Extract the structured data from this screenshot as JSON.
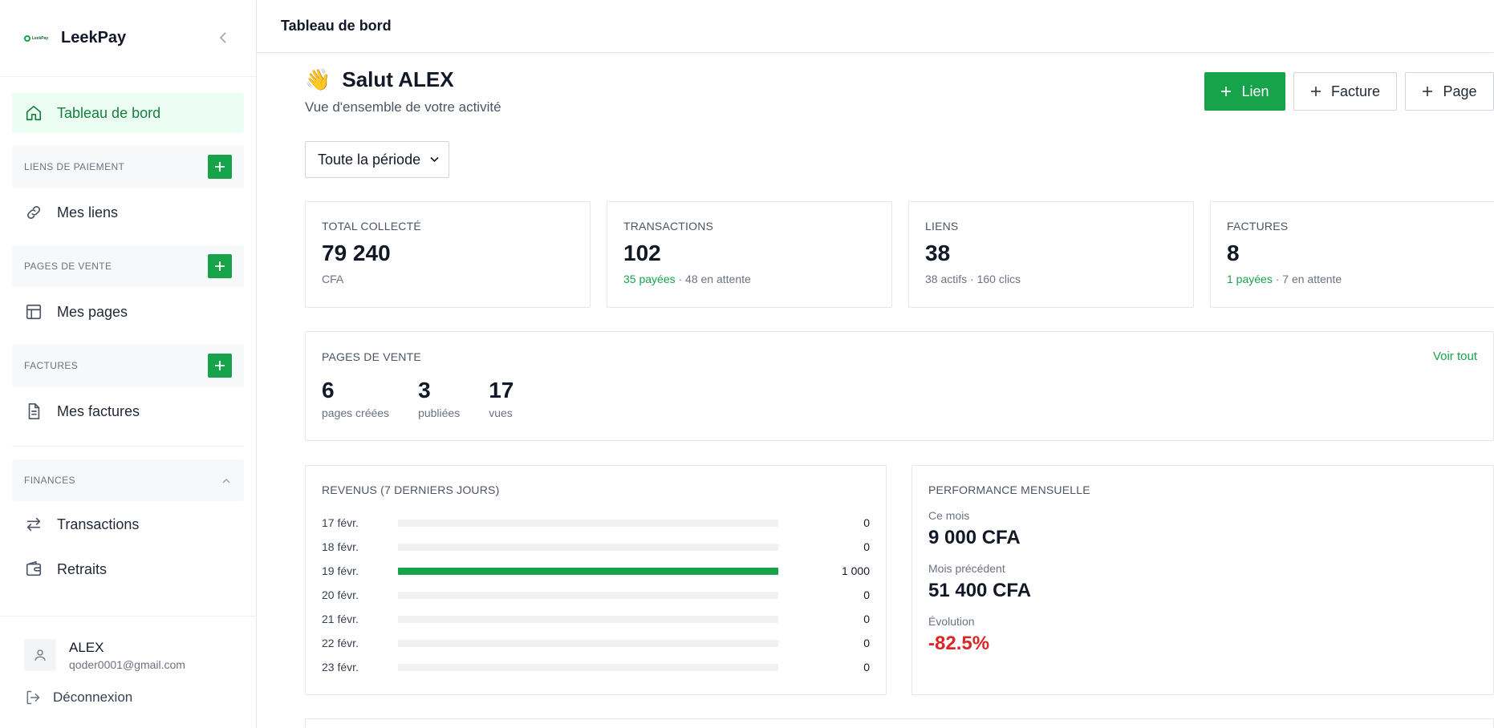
{
  "brand": {
    "name": "LeekPay",
    "logo_text": "LeekPay"
  },
  "sidebar": {
    "dashboard": "Tableau de bord",
    "sections": [
      {
        "title": "LIENS DE PAIEMENT",
        "item": "Mes liens"
      },
      {
        "title": "PAGES DE VENTE",
        "item": "Mes pages"
      },
      {
        "title": "FACTURES",
        "item": "Mes factures"
      }
    ],
    "finances": {
      "title": "FINANCES",
      "items": [
        "Transactions",
        "Retraits"
      ]
    },
    "user": {
      "name": "ALEX",
      "email": "qoder0001@gmail.com"
    },
    "logout": "Déconnexion"
  },
  "header": {
    "title": "Tableau de bord"
  },
  "greeting": {
    "wave": "👋",
    "title": "Salut ALEX",
    "subtitle": "Vue d'ensemble de votre activité"
  },
  "actions": {
    "lien": "Lien",
    "facture": "Facture",
    "page": "Page"
  },
  "period": {
    "selected": "Toute la période"
  },
  "stats": [
    {
      "label": "TOTAL COLLECTÉ",
      "value": "79 240",
      "sub_plain": "CFA",
      "sub_green": "",
      "sub_rest": ""
    },
    {
      "label": "TRANSACTIONS",
      "value": "102",
      "sub_plain": "",
      "sub_green": "35 payées",
      "sub_rest": " · 48 en attente"
    },
    {
      "label": "LIENS",
      "value": "38",
      "sub_plain": "38 actifs · 160 clics",
      "sub_green": "",
      "sub_rest": ""
    },
    {
      "label": "FACTURES",
      "value": "8",
      "sub_plain": "",
      "sub_green": "1 payées",
      "sub_rest": " · 7 en attente"
    }
  ],
  "sales_pages": {
    "title": "PAGES DE VENTE",
    "link": "Voir tout",
    "items": [
      {
        "value": "6",
        "label": "pages créées"
      },
      {
        "value": "3",
        "label": "publiées"
      },
      {
        "value": "17",
        "label": "vues"
      }
    ]
  },
  "revenue": {
    "title": "REVENUS (7 DERNIERS JOURS)",
    "max": 1000,
    "rows": [
      {
        "date": "17 févr.",
        "value": 0,
        "display": "0"
      },
      {
        "date": "18 févr.",
        "value": 0,
        "display": "0"
      },
      {
        "date": "19 févr.",
        "value": 1000,
        "display": "1 000"
      },
      {
        "date": "20 févr.",
        "value": 0,
        "display": "0"
      },
      {
        "date": "21 févr.",
        "value": 0,
        "display": "0"
      },
      {
        "date": "22 févr.",
        "value": 0,
        "display": "0"
      },
      {
        "date": "23 févr.",
        "value": 0,
        "display": "0"
      }
    ]
  },
  "performance": {
    "title": "PERFORMANCE MENSUELLE",
    "this_month_label": "Ce mois",
    "this_month_value": "9 000 CFA",
    "prev_month_label": "Mois précédent",
    "prev_month_value": "51 400 CFA",
    "evolution_label": "Évolution",
    "evolution_value": "-82.5%"
  },
  "colors": {
    "accent": "#16a34a",
    "danger": "#dc2626",
    "active_bg": "#ecfdf3"
  }
}
